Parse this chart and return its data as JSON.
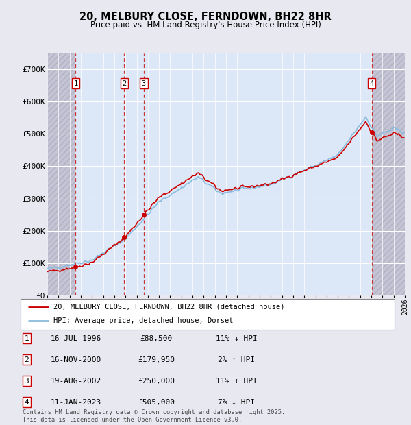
{
  "title": "20, MELBURY CLOSE, FERNDOWN, BH22 8HR",
  "subtitle": "Price paid vs. HM Land Registry's House Price Index (HPI)",
  "ylim": [
    0,
    750000
  ],
  "yticks": [
    0,
    100000,
    200000,
    300000,
    400000,
    500000,
    600000,
    700000
  ],
  "ytick_labels": [
    "£0",
    "£100K",
    "£200K",
    "£300K",
    "£400K",
    "£500K",
    "£600K",
    "£700K"
  ],
  "xlim_start": 1994.0,
  "xlim_end": 2026.0,
  "hatch_left_end": 1996.54,
  "hatch_right_start": 2023.03,
  "sale_dates": [
    1996.54,
    2000.88,
    2002.64,
    2023.03
  ],
  "sale_prices": [
    88500,
    179950,
    250000,
    505000
  ],
  "sale_labels": [
    "1",
    "2",
    "3",
    "4"
  ],
  "legend_line1": "20, MELBURY CLOSE, FERNDOWN, BH22 8HR (detached house)",
  "legend_line2": "HPI: Average price, detached house, Dorset",
  "table_entries": [
    [
      "1",
      "16-JUL-1996",
      "£88,500",
      "11% ↓ HPI"
    ],
    [
      "2",
      "16-NOV-2000",
      "£179,950",
      "2% ↑ HPI"
    ],
    [
      "3",
      "19-AUG-2002",
      "£250,000",
      "11% ↑ HPI"
    ],
    [
      "4",
      "11-JAN-2023",
      "£505,000",
      "7% ↓ HPI"
    ]
  ],
  "footer": "Contains HM Land Registry data © Crown copyright and database right 2025.\nThis data is licensed under the Open Government Licence v3.0.",
  "bg_color": "#e8e8f0",
  "plot_bg_color": "#dce8f8",
  "grid_color": "#ffffff",
  "hpi_line_color": "#88bbdd",
  "price_line_color": "#cc0000",
  "sale_marker_color": "#cc0000",
  "dashed_line_color": "#cc3333",
  "label_box_color": "#cc0000"
}
